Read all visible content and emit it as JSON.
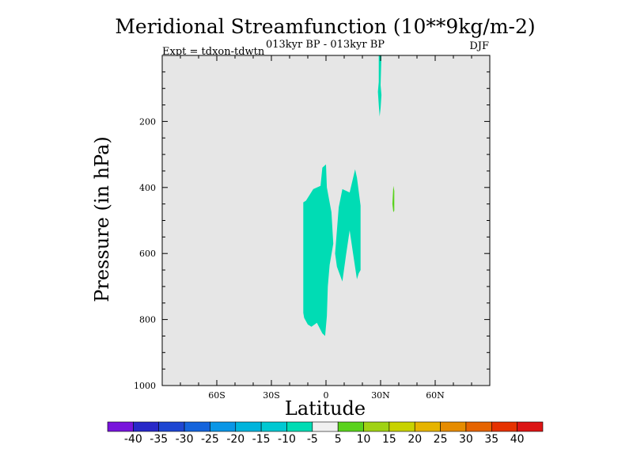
{
  "chart_data": {
    "type": "contour",
    "title": "Meridional Streamfunction (10**9kg/m-2)",
    "subtitle": "013kyr BP - 013kyr BP",
    "left_label": "Expt = tdxon-tdwtn",
    "right_label": "DJF",
    "xlabel": "Latitude",
    "ylabel": "Pressure (in hPa)",
    "xlim": [
      -90,
      90
    ],
    "ylim": [
      0,
      1000
    ],
    "y_inverted": true,
    "x_ticks": [
      {
        "value": -60,
        "label": "60S"
      },
      {
        "value": -30,
        "label": "30S"
      },
      {
        "value": 0,
        "label": "0"
      },
      {
        "value": 30,
        "label": "30N"
      },
      {
        "value": 60,
        "label": "60N"
      }
    ],
    "y_ticks": [
      {
        "value": 200,
        "label": "200"
      },
      {
        "value": 400,
        "label": "400"
      },
      {
        "value": 600,
        "label": "600"
      },
      {
        "value": 800,
        "label": "800"
      },
      {
        "value": 1000,
        "label": "1000"
      }
    ],
    "background_color": "#e6e6e6",
    "regions": [
      {
        "level": "-10 to -5",
        "color": "#00dcb4",
        "points": [
          [
            -12.5,
            445
          ],
          [
            -11,
            440
          ],
          [
            -7,
            405
          ],
          [
            -3,
            395
          ],
          [
            -2,
            340
          ],
          [
            0,
            330
          ],
          [
            0.5,
            400
          ],
          [
            3,
            475
          ],
          [
            4,
            570
          ],
          [
            2,
            635
          ],
          [
            1,
            700
          ],
          [
            0.5,
            790
          ],
          [
            -0.5,
            850
          ],
          [
            -2,
            842
          ],
          [
            -5,
            810
          ],
          [
            -8,
            822
          ],
          [
            -10,
            815
          ],
          [
            -12,
            795
          ],
          [
            -12.5,
            780
          ]
        ]
      },
      {
        "level": "-10 to -5",
        "color": "#00dcb4",
        "points": [
          [
            5,
            600
          ],
          [
            7,
            460
          ],
          [
            9,
            405
          ],
          [
            13,
            415
          ],
          [
            16,
            345
          ],
          [
            17,
            370
          ],
          [
            19,
            455
          ],
          [
            19,
            650
          ],
          [
            18,
            660
          ],
          [
            17,
            678
          ],
          [
            15,
            605
          ],
          [
            13,
            530
          ],
          [
            11,
            605
          ],
          [
            9,
            685
          ],
          [
            6,
            640
          ]
        ]
      },
      {
        "level": "-10 to -5",
        "color": "#00dcb4",
        "points": [
          [
            29,
            0
          ],
          [
            30.5,
            0
          ],
          [
            30,
            90
          ],
          [
            30.5,
            120
          ],
          [
            30,
            160
          ],
          [
            29.5,
            185
          ],
          [
            29,
            150
          ],
          [
            28.5,
            110
          ],
          [
            29,
            80
          ]
        ]
      },
      {
        "level": "5 to 10",
        "color": "#5ad21e",
        "points": [
          [
            37,
            395
          ],
          [
            37.5,
            410
          ],
          [
            37.5,
            470
          ],
          [
            37,
            475
          ],
          [
            36.5,
            450
          ]
        ]
      }
    ],
    "colorbar": {
      "labels": [
        "-40",
        "-35",
        "-30",
        "-25",
        "-20",
        "-15",
        "-10",
        "-5",
        "5",
        "10",
        "15",
        "20",
        "25",
        "30",
        "35",
        "40"
      ],
      "colors": [
        "#7814dc",
        "#2828c8",
        "#1e46d2",
        "#1464dc",
        "#0a96e6",
        "#00b4dc",
        "#00c8d2",
        "#00dcb4",
        "#f0f0f0",
        "#5ad21e",
        "#a0d214",
        "#c8d200",
        "#e6b400",
        "#e68c00",
        "#e66400",
        "#e63200",
        "#dc1414"
      ]
    }
  }
}
